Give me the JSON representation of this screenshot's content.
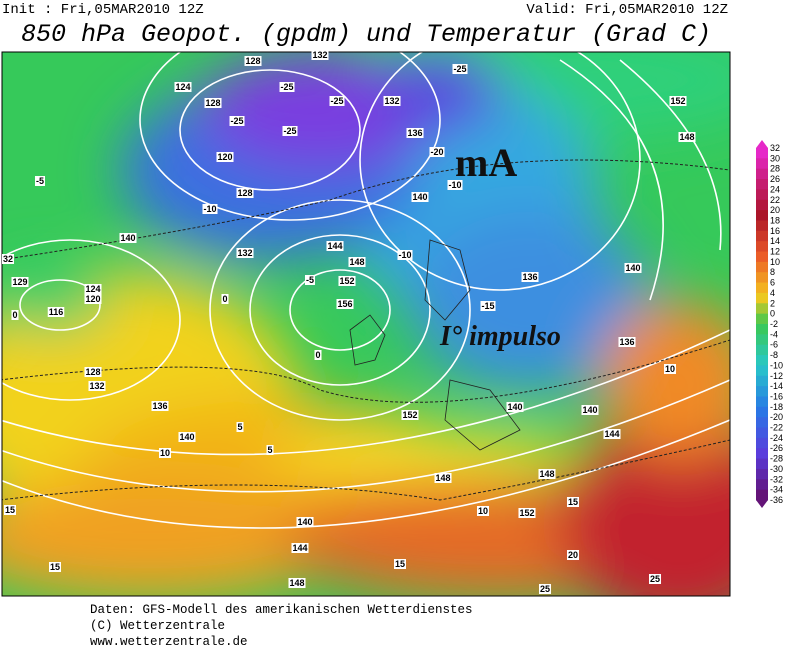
{
  "header": {
    "init": "Init : Fri,05MAR2010 12Z",
    "valid": "Valid: Fri,05MAR2010 12Z",
    "title": "850 hPa Geopot. (gpdm) und Temperatur (Grad C)"
  },
  "annotations": [
    "mA",
    "I° impulso"
  ],
  "colorbar": [
    32,
    30,
    28,
    26,
    24,
    22,
    20,
    18,
    16,
    14,
    12,
    10,
    8,
    6,
    4,
    2,
    0,
    -2,
    -4,
    -6,
    -8,
    -10,
    -12,
    -14,
    -16,
    -18,
    -20,
    -22,
    -24,
    -26,
    -28,
    -30,
    -32,
    -34,
    -36
  ],
  "contour_labels": [
    128,
    132,
    -25,
    124,
    128,
    -25,
    -25,
    132,
    -25,
    -25,
    136,
    -20,
    120,
    -10,
    128,
    140,
    -10,
    144,
    148,
    152,
    156,
    -5,
    -10,
    -15,
    136,
    140,
    152,
    148,
    -5,
    132,
    140,
    32,
    129,
    124,
    120,
    116,
    0,
    128,
    132,
    136,
    140,
    10,
    15,
    15,
    140,
    144,
    148,
    148,
    152,
    148,
    10,
    15,
    20,
    25,
    15,
    25,
    140,
    144,
    136,
    140,
    152,
    10,
    0,
    0,
    5,
    5
  ],
  "footer": [
    "Daten: GFS-Modell des amerikanischen Wetterdienstes",
    "(C) Wetterzentrale",
    "www.wetterzentrale.de"
  ]
}
